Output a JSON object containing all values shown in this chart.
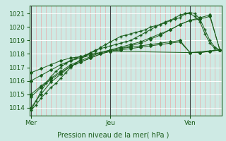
{
  "bg_color": "#ceeae4",
  "plot_bg_color": "#ceeae4",
  "grid_color_major": "#ffffff",
  "grid_color_minor": "#e8aaaa",
  "line_color": "#1a5c1a",
  "marker_color": "#1a5c1a",
  "xlabel": "Pression niveau de la mer( hPa )",
  "xlabel_color": "#1a5c1a",
  "tick_color": "#1a5c1a",
  "spine_color": "#1a5c1a",
  "xtick_labels": [
    "Mer",
    "Jeu",
    "Ven"
  ],
  "xtick_positions": [
    0,
    48,
    96
  ],
  "ytick_positions": [
    1014,
    1015,
    1016,
    1017,
    1018,
    1019,
    1020,
    1021
  ],
  "ylim": [
    1013.4,
    1021.6
  ],
  "xlim": [
    -1,
    115
  ],
  "series": [
    {
      "x": [
        0,
        3,
        6,
        9,
        12,
        15,
        18,
        21,
        24,
        27,
        30,
        33,
        36,
        39,
        42,
        45,
        48,
        51,
        54,
        57,
        60,
        63,
        66,
        69,
        72,
        75,
        78,
        81,
        84,
        87,
        90,
        93,
        96,
        99,
        102,
        105,
        108,
        111,
        114
      ],
      "y": [
        1013.8,
        1014.2,
        1014.7,
        1015.1,
        1015.5,
        1015.8,
        1016.2,
        1016.6,
        1017.0,
        1017.3,
        1017.6,
        1017.9,
        1018.1,
        1018.3,
        1018.4,
        1018.5,
        1018.6,
        1018.7,
        1018.8,
        1018.9,
        1019.0,
        1019.2,
        1019.4,
        1019.6,
        1019.8,
        1020.0,
        1020.2,
        1020.4,
        1020.5,
        1020.6,
        1020.7,
        1021.0,
        1021.1,
        1021.0,
        1020.6,
        1019.8,
        1019.0,
        1018.5,
        1018.3
      ],
      "marker": "+"
    },
    {
      "x": [
        0,
        3,
        6,
        9,
        12,
        15,
        18,
        21,
        24,
        27,
        30,
        33,
        36,
        39,
        42,
        45,
        48,
        51,
        54,
        57,
        60,
        63,
        66,
        69,
        72,
        75,
        78,
        81,
        84,
        87,
        90,
        93,
        96,
        99,
        102,
        105,
        108,
        111,
        114
      ],
      "y": [
        1013.8,
        1014.5,
        1015.2,
        1015.8,
        1016.3,
        1016.7,
        1017.0,
        1017.3,
        1017.5,
        1017.7,
        1017.8,
        1017.9,
        1018.1,
        1018.2,
        1018.5,
        1018.7,
        1018.9,
        1019.1,
        1019.3,
        1019.4,
        1019.5,
        1019.6,
        1019.7,
        1019.8,
        1020.0,
        1020.1,
        1020.2,
        1020.3,
        1020.5,
        1020.7,
        1020.9,
        1021.0,
        1021.0,
        1020.8,
        1020.4,
        1019.5,
        1018.8,
        1018.4,
        1018.3
      ],
      "marker": "+"
    },
    {
      "x": [
        0,
        6,
        12,
        18,
        24,
        30,
        36,
        42,
        48,
        54,
        60,
        66,
        72,
        78,
        84,
        90,
        96,
        102,
        108,
        114
      ],
      "y": [
        1014.8,
        1015.5,
        1016.1,
        1016.6,
        1017.1,
        1017.4,
        1017.7,
        1018.0,
        1018.2,
        1018.4,
        1018.6,
        1018.8,
        1019.1,
        1019.4,
        1019.8,
        1020.2,
        1020.5,
        1020.7,
        1020.9,
        1018.3
      ],
      "marker": "D"
    },
    {
      "x": [
        0,
        6,
        12,
        18,
        24,
        30,
        36,
        42,
        48,
        54,
        60,
        66,
        72,
        78,
        84,
        90,
        96,
        102,
        108,
        114
      ],
      "y": [
        1015.0,
        1015.6,
        1016.2,
        1016.7,
        1017.2,
        1017.5,
        1017.8,
        1018.1,
        1018.3,
        1018.5,
        1018.7,
        1018.9,
        1019.2,
        1019.5,
        1019.8,
        1020.2,
        1020.5,
        1020.6,
        1020.8,
        1018.3
      ],
      "marker": "D"
    },
    {
      "x": [
        0,
        6,
        12,
        18,
        24,
        30,
        36,
        42,
        48,
        54,
        60,
        66,
        72,
        78,
        84,
        90,
        96,
        102,
        108,
        114
      ],
      "y": [
        1016.0,
        1016.4,
        1016.8,
        1017.2,
        1017.5,
        1017.7,
        1017.9,
        1018.1,
        1018.3,
        1018.4,
        1018.5,
        1018.6,
        1018.7,
        1018.8,
        1018.9,
        1019.0,
        1018.1,
        1018.1,
        1018.2,
        1018.3
      ],
      "marker": "D"
    },
    {
      "x": [
        0,
        6,
        12,
        18,
        24,
        30,
        36,
        42,
        48,
        54,
        60,
        66,
        72,
        78,
        84,
        90,
        96,
        102,
        108,
        114
      ],
      "y": [
        1016.6,
        1016.9,
        1017.2,
        1017.5,
        1017.7,
        1017.8,
        1018.0,
        1018.1,
        1018.2,
        1018.3,
        1018.4,
        1018.5,
        1018.6,
        1018.7,
        1018.8,
        1018.9,
        1018.1,
        1018.1,
        1018.2,
        1018.3
      ],
      "marker": "D"
    },
    {
      "x": [
        0,
        6,
        12,
        18,
        24,
        30,
        36,
        42,
        48,
        96,
        114
      ],
      "y": [
        1014.0,
        1015.0,
        1015.9,
        1016.5,
        1017.1,
        1017.4,
        1017.7,
        1018.0,
        1018.2,
        1018.1,
        1018.3
      ],
      "marker": "D"
    }
  ]
}
